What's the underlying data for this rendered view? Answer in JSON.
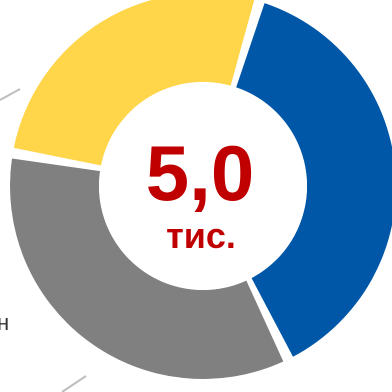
{
  "chart_data": {
    "type": "pie",
    "variant": "donut",
    "center_label": {
      "value": "5,0",
      "unit": "тис.",
      "color": "#C00000"
    },
    "slices": [
      {
        "value": 38,
        "color": "#0057A8"
      },
      {
        "value": 35,
        "color": "#808080"
      },
      {
        "value": 27,
        "color": "#FFD54A"
      }
    ],
    "edge_label": "н",
    "edge_label_color": "#333333",
    "leader_line_color": "#BDBDBD"
  }
}
